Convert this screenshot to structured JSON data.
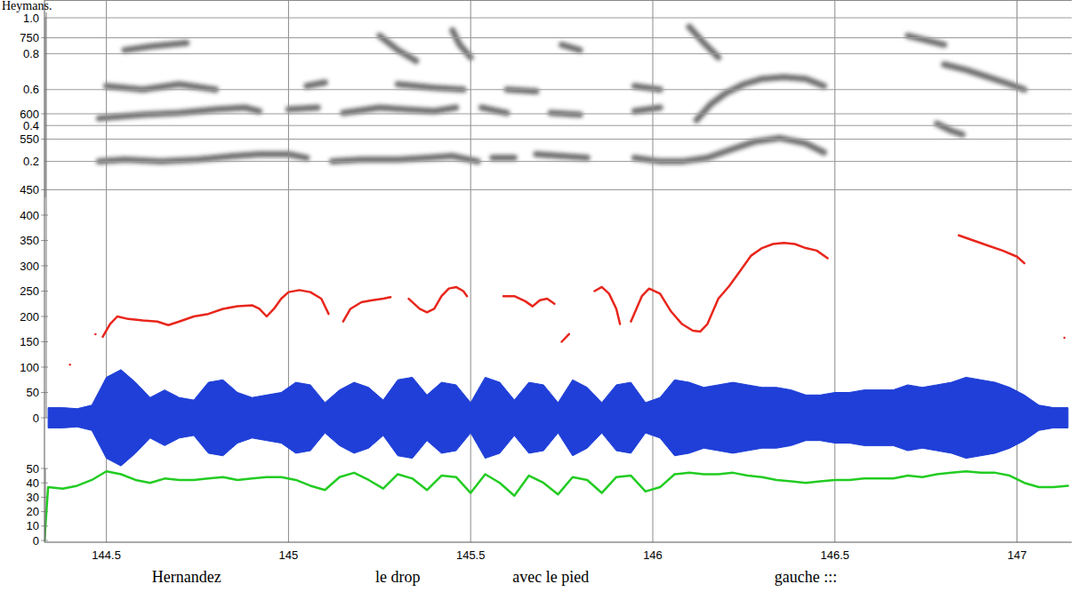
{
  "chart_data": {
    "type": "line",
    "caption": "Heymans.",
    "xlim": [
      144.33,
      147.15
    ],
    "xticks": [
      144.5,
      145,
      145.5,
      146,
      146.5,
      147
    ],
    "grid": true,
    "spectrogram": {
      "color": "#333333",
      "ylim": [
        0,
        1
      ],
      "yticks": [
        0.2,
        0.4,
        0.6,
        0.8,
        {
          "value": 1,
          "label": "1.0"
        }
      ],
      "tracks": [
        {
          "x": [
            144.48,
            144.55,
            144.65,
            144.75,
            144.8,
            144.85,
            144.92,
            145.0,
            145.05,
            145.08,
            145.12,
            145.2,
            145.3,
            145.38,
            145.45,
            145.52,
            145.54,
            145.56,
            145.62,
            145.65,
            145.68,
            145.75,
            145.82,
            145.88,
            145.95,
            146.02,
            146.08,
            146.15,
            146.22,
            146.28,
            146.35,
            146.42,
            146.47,
            146.6,
            146.78,
            146.82,
            146.85
          ],
          "values": [
            0.2,
            0.21,
            0.2,
            0.21,
            0.22,
            0.23,
            0.24,
            0.24,
            0.22,
            null,
            0.2,
            0.21,
            0.21,
            0.22,
            0.23,
            0.2,
            null,
            0.22,
            0.22,
            null,
            0.24,
            0.23,
            0.22,
            null,
            0.22,
            0.2,
            0.2,
            0.22,
            0.27,
            0.31,
            0.33,
            0.3,
            0.25,
            null,
            0.41,
            0.37,
            0.35
          ]
        },
        {
          "x": [
            144.48,
            144.6,
            144.7,
            144.8,
            144.88,
            144.92,
            144.95,
            145.0,
            145.08,
            145.12,
            145.15,
            145.25,
            145.32,
            145.4,
            145.46,
            145.5,
            145.53,
            145.6,
            145.65,
            145.72,
            145.8,
            145.88,
            145.95,
            146.02,
            146.08,
            146.12,
            146.16,
            146.2,
            146.25,
            146.3,
            146.36,
            146.42,
            146.47
          ],
          "values": [
            0.44,
            0.46,
            0.47,
            0.49,
            0.5,
            0.48,
            null,
            0.49,
            0.5,
            null,
            0.47,
            0.5,
            0.49,
            0.48,
            0.5,
            null,
            0.5,
            0.47,
            null,
            0.47,
            0.46,
            null,
            0.48,
            0.5,
            null,
            0.43,
            0.52,
            0.58,
            0.63,
            0.66,
            0.67,
            0.66,
            0.62
          ]
        },
        {
          "x": [
            144.5,
            144.6,
            144.7,
            144.8,
            144.85,
            145.05,
            145.1,
            145.15,
            145.3,
            145.4,
            145.48,
            145.55,
            145.6,
            145.68,
            145.75,
            145.95,
            146.02,
            146.1,
            146.8,
            146.86,
            146.92,
            146.98,
            147.02
          ],
          "values": [
            0.62,
            0.6,
            0.63,
            0.6,
            null,
            0.62,
            0.64,
            null,
            0.63,
            0.61,
            0.6,
            null,
            0.6,
            0.59,
            null,
            0.62,
            0.6,
            null,
            0.74,
            0.71,
            0.67,
            0.63,
            0.6
          ]
        },
        {
          "x": [
            144.55,
            144.62,
            144.72,
            144.78,
            145.25,
            145.3,
            145.35,
            145.4,
            145.45,
            145.47,
            145.5,
            145.55,
            145.75,
            145.8,
            145.85,
            146.1,
            146.14,
            146.18,
            146.25,
            146.7,
            146.8
          ],
          "values": [
            0.82,
            0.84,
            0.86,
            null,
            0.9,
            0.82,
            0.76,
            null,
            0.93,
            0.85,
            0.78,
            null,
            0.85,
            0.82,
            null,
            0.95,
            0.86,
            0.78,
            null,
            0.9,
            0.85
          ]
        }
      ]
    },
    "pitch": {
      "color": "#e8261c",
      "ylim": [
        0,
        800
      ],
      "yticks": [
        0,
        50,
        100,
        150,
        200,
        250,
        300,
        350,
        400,
        450,
        550,
        600,
        750
      ],
      "x": [
        144.4,
        144.44,
        144.47,
        144.48,
        144.49,
        144.51,
        144.53,
        144.56,
        144.6,
        144.64,
        144.67,
        144.7,
        144.74,
        144.78,
        144.82,
        144.86,
        144.9,
        144.92,
        144.94,
        144.96,
        144.98,
        145.0,
        145.03,
        145.06,
        145.09,
        145.11,
        145.13,
        145.15,
        145.17,
        145.2,
        145.23,
        145.26,
        145.28,
        145.3,
        145.33,
        145.36,
        145.38,
        145.4,
        145.42,
        145.44,
        145.46,
        145.48,
        145.49,
        145.54,
        145.59,
        145.62,
        145.65,
        145.67,
        145.69,
        145.71,
        145.73,
        145.74,
        145.75,
        145.77,
        145.8,
        145.84,
        145.86,
        145.88,
        145.9,
        145.91,
        145.92,
        145.94,
        145.97,
        145.99,
        146.02,
        146.05,
        146.08,
        146.11,
        146.13,
        146.15,
        146.18,
        146.21,
        146.24,
        146.27,
        146.3,
        146.33,
        146.36,
        146.39,
        146.42,
        146.45,
        146.48,
        146.6,
        146.84,
        146.88,
        146.92,
        146.96,
        147.0,
        147.02,
        147.08,
        147.13
      ],
      "values": [
        105,
        null,
        165,
        null,
        160,
        185,
        200,
        195,
        192,
        190,
        183,
        190,
        200,
        205,
        215,
        220,
        222,
        215,
        200,
        215,
        235,
        248,
        252,
        248,
        235,
        205,
        null,
        190,
        215,
        228,
        232,
        235,
        238,
        null,
        235,
        215,
        208,
        215,
        240,
        255,
        258,
        250,
        240,
        null,
        240,
        240,
        230,
        220,
        232,
        235,
        225,
        null,
        150,
        165,
        null,
        250,
        258,
        245,
        215,
        185,
        null,
        190,
        240,
        255,
        245,
        210,
        185,
        172,
        170,
        185,
        235,
        260,
        290,
        320,
        335,
        343,
        345,
        343,
        335,
        330,
        315,
        null,
        360,
        350,
        340,
        330,
        318,
        305,
        null,
        158
      ]
    },
    "waveform": {
      "color": "#1f3fd8",
      "x": [
        144.34,
        144.38,
        144.42,
        144.46,
        144.5,
        144.54,
        144.58,
        144.62,
        144.66,
        144.7,
        144.74,
        144.78,
        144.82,
        144.86,
        144.9,
        144.94,
        144.98,
        145.02,
        145.06,
        145.1,
        145.14,
        145.18,
        145.22,
        145.26,
        145.3,
        145.34,
        145.38,
        145.42,
        145.46,
        145.5,
        145.54,
        145.58,
        145.62,
        145.66,
        145.7,
        145.74,
        145.78,
        145.82,
        145.86,
        145.9,
        145.94,
        145.98,
        146.02,
        146.06,
        146.1,
        146.14,
        146.18,
        146.22,
        146.26,
        146.3,
        146.34,
        146.38,
        146.42,
        146.46,
        146.5,
        146.54,
        146.58,
        146.62,
        146.66,
        146.7,
        146.74,
        146.78,
        146.82,
        146.86,
        146.9,
        146.94,
        146.98,
        147.02,
        147.06,
        147.1,
        147.14
      ],
      "values": [
        20,
        20,
        18,
        25,
        80,
        95,
        70,
        40,
        55,
        40,
        35,
        70,
        75,
        50,
        40,
        45,
        50,
        70,
        65,
        30,
        55,
        70,
        60,
        35,
        75,
        80,
        45,
        70,
        65,
        30,
        80,
        70,
        35,
        70,
        65,
        30,
        75,
        60,
        30,
        65,
        70,
        30,
        40,
        75,
        70,
        60,
        65,
        70,
        65,
        60,
        60,
        55,
        45,
        45,
        50,
        50,
        55,
        55,
        55,
        65,
        60,
        65,
        70,
        80,
        75,
        70,
        60,
        45,
        25,
        20,
        20
      ]
    },
    "intensity": {
      "color": "#22cc22",
      "ylim": [
        0,
        50
      ],
      "yticks": [
        0,
        10,
        20,
        30,
        40,
        50
      ],
      "x": [
        144.33,
        144.34,
        144.38,
        144.42,
        144.46,
        144.5,
        144.54,
        144.58,
        144.62,
        144.66,
        144.7,
        144.74,
        144.78,
        144.82,
        144.86,
        144.9,
        144.94,
        144.98,
        145.02,
        145.06,
        145.1,
        145.14,
        145.18,
        145.22,
        145.26,
        145.3,
        145.34,
        145.38,
        145.42,
        145.46,
        145.5,
        145.54,
        145.58,
        145.62,
        145.66,
        145.7,
        145.74,
        145.78,
        145.82,
        145.86,
        145.9,
        145.94,
        145.98,
        146.02,
        146.06,
        146.1,
        146.14,
        146.18,
        146.22,
        146.26,
        146.3,
        146.34,
        146.38,
        146.42,
        146.46,
        146.5,
        146.54,
        146.58,
        146.62,
        146.66,
        146.7,
        146.74,
        146.78,
        146.82,
        146.86,
        146.9,
        146.94,
        146.98,
        147.02,
        147.06,
        147.1,
        147.14
      ],
      "values": [
        0,
        37,
        36,
        38,
        42,
        48,
        46,
        42,
        40,
        43,
        42,
        42,
        43,
        44,
        42,
        43,
        44,
        44,
        42,
        38,
        35,
        44,
        47,
        42,
        36,
        46,
        43,
        35,
        45,
        44,
        33,
        46,
        40,
        31,
        45,
        40,
        32,
        44,
        42,
        33,
        44,
        45,
        34,
        37,
        46,
        47,
        46,
        46,
        47,
        45,
        44,
        42,
        41,
        40,
        41,
        42,
        42,
        43,
        43,
        43,
        45,
        44,
        46,
        47,
        48,
        47,
        47,
        45,
        40,
        37,
        37,
        38
      ]
    },
    "words": [
      {
        "text": "Hernandez",
        "x": 144.72
      },
      {
        "text": "le drop",
        "x": 145.3
      },
      {
        "text": "avec le pied",
        "x": 145.72
      },
      {
        "text": "gauche :::",
        "x": 146.42
      }
    ]
  }
}
